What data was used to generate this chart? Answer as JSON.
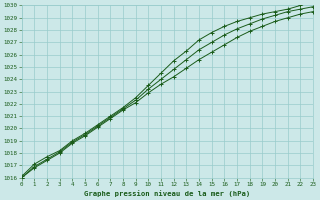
{
  "xlabel": "Graphe pression niveau de la mer (hPa)",
  "xlim": [
    0,
    23
  ],
  "ylim": [
    1016,
    1030
  ],
  "xticks": [
    0,
    1,
    2,
    3,
    4,
    5,
    6,
    7,
    8,
    9,
    10,
    11,
    12,
    13,
    14,
    15,
    16,
    17,
    18,
    19,
    20,
    21,
    22,
    23
  ],
  "yticks": [
    1016,
    1017,
    1018,
    1019,
    1020,
    1021,
    1022,
    1023,
    1024,
    1025,
    1026,
    1027,
    1028,
    1029,
    1030
  ],
  "background_color": "#cce8e8",
  "grid_color": "#99cccc",
  "line_color": "#1a5c1a",
  "x": [
    0,
    1,
    2,
    3,
    4,
    5,
    6,
    7,
    8,
    9,
    10,
    11,
    12,
    13,
    14,
    15,
    16,
    17,
    18,
    19,
    20,
    21,
    22,
    23
  ],
  "y_high": [
    1016.1,
    1017.1,
    1017.7,
    1018.2,
    1019.0,
    1019.6,
    1020.3,
    1021.0,
    1021.7,
    1022.5,
    1023.5,
    1024.5,
    1025.5,
    1026.3,
    1027.2,
    1027.8,
    1028.3,
    1028.7,
    1029.0,
    1029.3,
    1029.5,
    1029.7,
    1030.0,
    1030.3
  ],
  "y_mid": [
    1016.0,
    1016.9,
    1017.5,
    1018.1,
    1018.9,
    1019.5,
    1020.2,
    1020.9,
    1021.6,
    1022.3,
    1023.2,
    1024.0,
    1024.8,
    1025.6,
    1026.4,
    1027.0,
    1027.6,
    1028.1,
    1028.5,
    1028.9,
    1029.2,
    1029.5,
    1029.7,
    1029.9
  ],
  "y_low": [
    1016.0,
    1016.8,
    1017.4,
    1018.0,
    1018.8,
    1019.4,
    1020.1,
    1020.8,
    1021.5,
    1022.1,
    1022.9,
    1023.6,
    1024.2,
    1024.9,
    1025.6,
    1026.2,
    1026.8,
    1027.4,
    1027.9,
    1028.3,
    1028.7,
    1029.0,
    1029.3,
    1029.5
  ]
}
